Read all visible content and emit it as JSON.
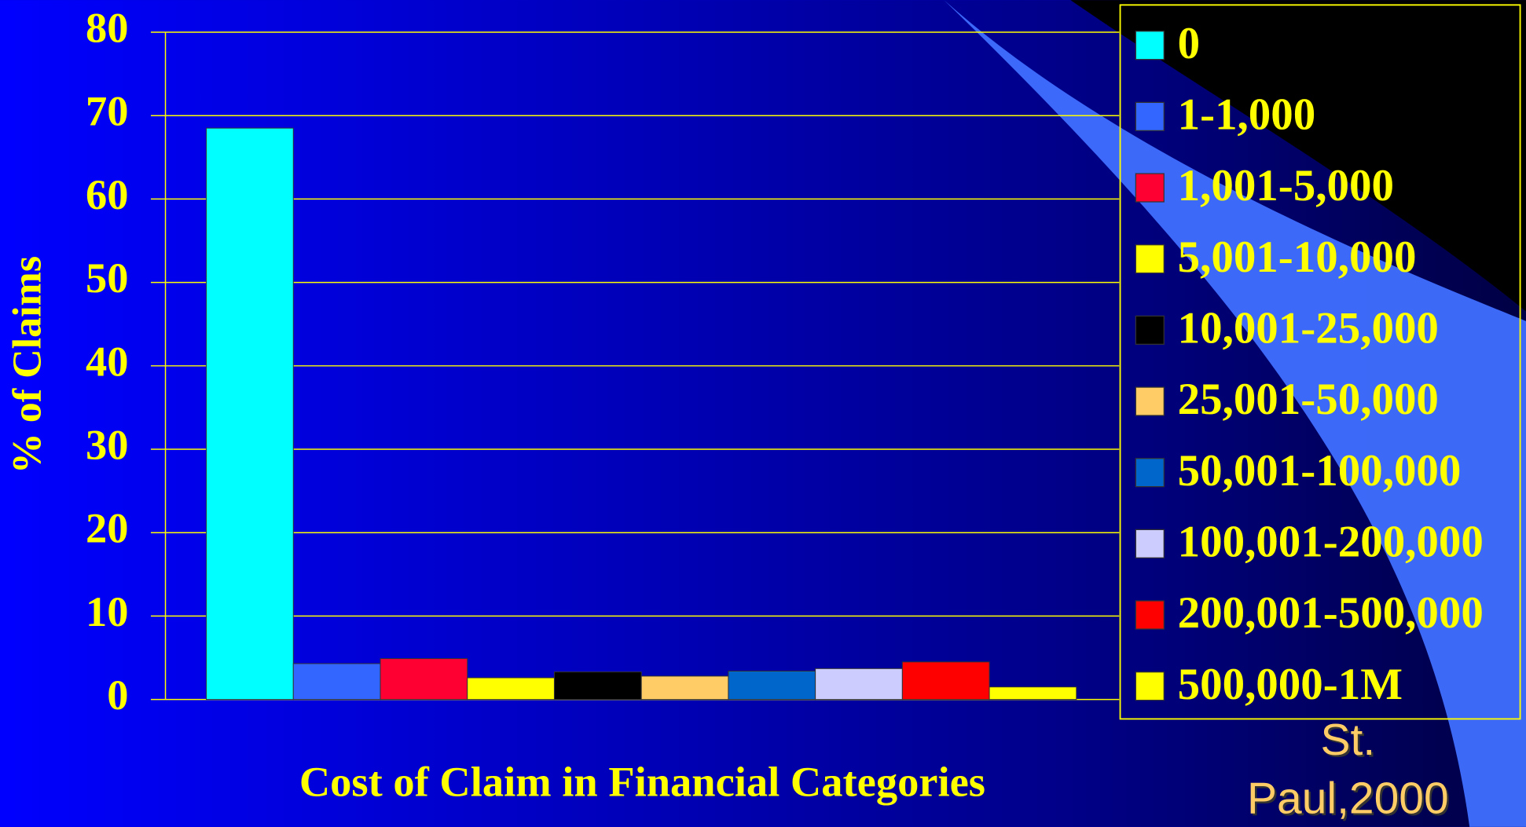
{
  "chart_data": {
    "type": "bar",
    "ylabel": "% of Claims",
    "xlabel": "Cost of Claim in Financial Categories",
    "annotation": "St. Paul,2000",
    "categories": [
      null
    ],
    "series": [
      {
        "name": "0",
        "color": "#00ffff",
        "values": [
          68.5
        ]
      },
      {
        "name": "1-1,000",
        "color": "#3366ff",
        "values": [
          4.3
        ]
      },
      {
        "name": "1,001-5,000",
        "color": "#ff0033",
        "values": [
          4.9
        ]
      },
      {
        "name": "5,001-10,000",
        "color": "#ffff00",
        "values": [
          2.6
        ]
      },
      {
        "name": "10,001-25,000",
        "color": "#000000",
        "values": [
          3.3
        ]
      },
      {
        "name": "25,001-50,000",
        "color": "#ffcc66",
        "values": [
          2.8
        ]
      },
      {
        "name": "50,001-100,000",
        "color": "#0066cc",
        "values": [
          3.4
        ]
      },
      {
        "name": "100,001-200,000",
        "color": "#ccccff",
        "values": [
          3.7
        ]
      },
      {
        "name": "200,001-500,000",
        "color": "#ff0000",
        "values": [
          4.5
        ]
      },
      {
        "name": "500,000-1M",
        "color": "#ffff00",
        "values": [
          1.5
        ]
      }
    ],
    "ylim": [
      0,
      80
    ],
    "yticks": [
      0,
      10,
      20,
      30,
      40,
      50,
      60,
      70,
      80
    ],
    "grid": true,
    "legend": "right"
  }
}
